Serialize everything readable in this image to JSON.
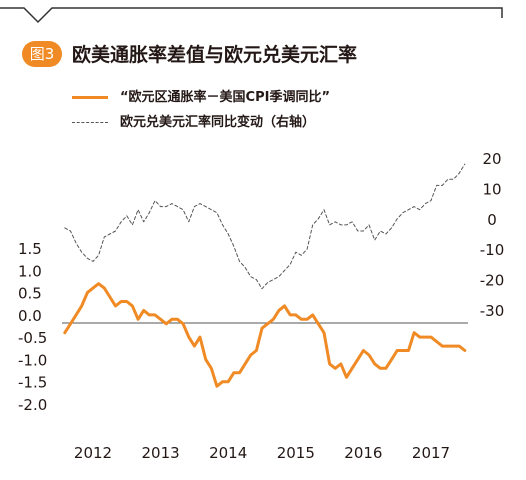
{
  "header": {
    "badge": "图3",
    "title": "欧美通胀率差值与欧元兑美元汇率"
  },
  "colors": {
    "accent": "#f08a24",
    "dashed": "#555555",
    "frame": "#333333"
  },
  "chart_data": {
    "type": "line",
    "title": "欧美通胀率差值与欧元兑美元汇率",
    "legend_placement": "top-left",
    "grid": false,
    "left_axis": {
      "ticks": [
        "1.5",
        "1.0",
        "0.5",
        "0.0",
        "-0.5",
        "-1.0",
        "-1.5",
        "-2.0"
      ],
      "ylim": [
        -2.0,
        1.5
      ]
    },
    "right_axis": {
      "ticks": [
        "20",
        "10",
        "0",
        "-10",
        "-20",
        "-30"
      ],
      "ylim": [
        -30,
        20
      ]
    },
    "x_ticks": [
      "2012",
      "2013",
      "2014",
      "2015",
      "2016",
      "2017"
    ],
    "series": [
      {
        "name": "“欧元区通胀率－美国CPI季调同比”",
        "axis": "left",
        "style": "solid",
        "color": "#f08a24",
        "x": [
          "2011-08",
          "2011-09",
          "2011-10",
          "2011-11",
          "2011-12",
          "2012-01",
          "2012-02",
          "2012-03",
          "2012-04",
          "2012-05",
          "2012-06",
          "2012-07",
          "2012-08",
          "2012-09",
          "2012-10",
          "2012-11",
          "2012-12",
          "2013-01",
          "2013-02",
          "2013-03",
          "2013-04",
          "2013-05",
          "2013-06",
          "2013-07",
          "2013-08",
          "2013-09",
          "2013-10",
          "2013-11",
          "2013-12",
          "2014-01",
          "2014-02",
          "2014-03",
          "2014-04",
          "2014-05",
          "2014-06",
          "2014-07",
          "2014-08",
          "2014-09",
          "2014-10",
          "2014-11",
          "2014-12",
          "2015-01",
          "2015-02",
          "2015-03",
          "2015-04",
          "2015-05",
          "2015-06",
          "2015-07",
          "2015-08",
          "2015-09",
          "2015-10",
          "2015-11",
          "2015-12",
          "2016-01",
          "2016-02",
          "2016-03",
          "2016-04",
          "2016-05",
          "2016-06",
          "2016-07",
          "2016-08",
          "2016-09",
          "2016-10",
          "2016-11",
          "2016-12",
          "2017-01",
          "2017-02",
          "2017-03",
          "2017-04",
          "2017-05",
          "2017-06",
          "2017-07"
        ],
        "y": [
          -0.4,
          -0.2,
          0.0,
          0.2,
          0.5,
          0.6,
          0.7,
          0.6,
          0.4,
          0.2,
          0.3,
          0.3,
          0.2,
          -0.1,
          0.1,
          0.0,
          0.0,
          -0.1,
          -0.2,
          -0.1,
          -0.1,
          -0.2,
          -0.5,
          -0.7,
          -0.5,
          -1.0,
          -1.2,
          -1.6,
          -1.5,
          -1.5,
          -1.3,
          -1.3,
          -1.1,
          -0.9,
          -0.8,
          -0.3,
          -0.2,
          -0.1,
          0.1,
          0.2,
          0.0,
          0.0,
          -0.1,
          -0.1,
          0.0,
          -0.2,
          -0.4,
          -1.1,
          -1.2,
          -1.1,
          -1.4,
          -1.2,
          -1.0,
          -0.8,
          -0.9,
          -1.1,
          -1.2,
          -1.2,
          -1.0,
          -0.8,
          -0.8,
          -0.8,
          -0.4,
          -0.5,
          -0.5,
          -0.5,
          -0.6,
          -0.7,
          -0.7,
          -0.7,
          -0.7,
          -0.8
        ]
      },
      {
        "name": "欧元兑美元汇率同比变动（右轴）",
        "axis": "right",
        "style": "dashed",
        "color": "#555555",
        "x": [
          "2011-08",
          "2011-09",
          "2011-10",
          "2011-11",
          "2011-12",
          "2012-01",
          "2012-02",
          "2012-03",
          "2012-04",
          "2012-05",
          "2012-06",
          "2012-07",
          "2012-08",
          "2012-09",
          "2012-10",
          "2012-11",
          "2012-12",
          "2013-01",
          "2013-02",
          "2013-03",
          "2013-04",
          "2013-05",
          "2013-06",
          "2013-07",
          "2013-08",
          "2013-09",
          "2013-10",
          "2013-11",
          "2013-12",
          "2014-01",
          "2014-02",
          "2014-03",
          "2014-04",
          "2014-05",
          "2014-06",
          "2014-07",
          "2014-08",
          "2014-09",
          "2014-10",
          "2014-11",
          "2014-12",
          "2015-01",
          "2015-02",
          "2015-03",
          "2015-04",
          "2015-05",
          "2015-06",
          "2015-07",
          "2015-08",
          "2015-09",
          "2015-10",
          "2015-11",
          "2015-12",
          "2016-01",
          "2016-02",
          "2016-03",
          "2016-04",
          "2016-05",
          "2016-06",
          "2016-07",
          "2016-08",
          "2016-09",
          "2016-10",
          "2016-11",
          "2016-12",
          "2017-01",
          "2017-02",
          "2017-03",
          "2017-04",
          "2017-05",
          "2017-06",
          "2017-07"
        ],
        "y": [
          -3,
          -4,
          -8,
          -11,
          -13,
          -14,
          -12,
          -6,
          -5,
          -4,
          -1,
          1,
          -2,
          3,
          -1,
          2,
          6,
          4,
          4,
          5,
          4,
          3,
          -1,
          4,
          5,
          4,
          3,
          2,
          -2,
          -5,
          -9,
          -14,
          -16,
          -19,
          -20,
          -23,
          -21,
          -20,
          -19,
          -17,
          -15,
          -11,
          -12,
          -10,
          -2,
          0,
          3,
          -2,
          -1,
          -2,
          -2,
          -1,
          -4,
          -4,
          -2,
          -7,
          -4,
          -5,
          -3,
          0,
          2,
          3,
          4,
          3,
          5,
          6,
          11,
          11,
          13,
          13,
          15,
          18
        ]
      }
    ]
  }
}
